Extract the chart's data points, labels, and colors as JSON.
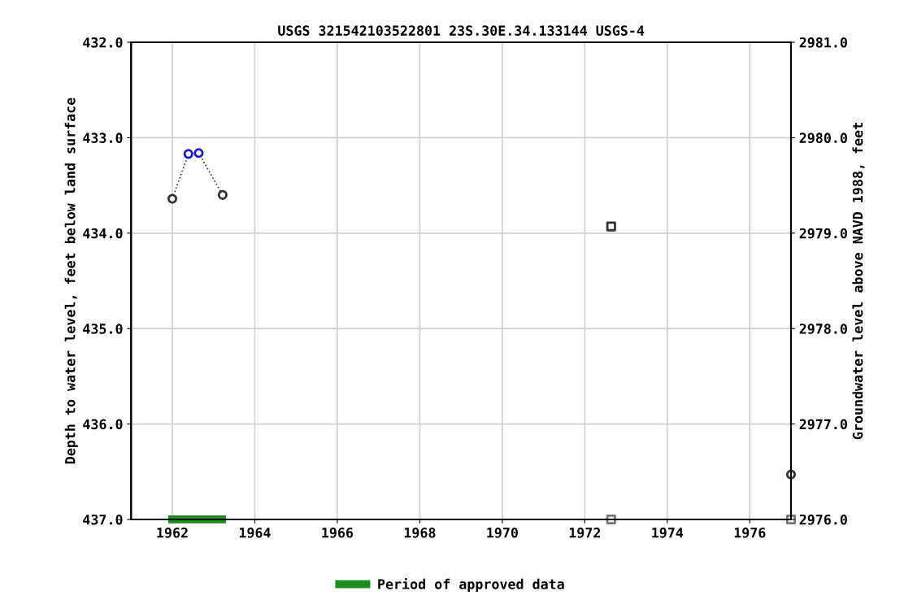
{
  "chart_data": {
    "type": "scatter",
    "title": "USGS 321542103522801 23S.30E.34.133144 USGS-4",
    "ylabel": "Depth to water level, feet below land surface",
    "y2label": "Groundwater level above NAVD 1988, feet",
    "xlim": [
      1961.0,
      1977.0
    ],
    "xticks": [
      1962,
      1964,
      1966,
      1968,
      1970,
      1972,
      1974,
      1976
    ],
    "ylim": [
      437.0,
      432.0
    ],
    "yticks": [
      {
        "value": 432,
        "label": "432.0"
      },
      {
        "value": 433,
        "label": "433.0"
      },
      {
        "value": 434,
        "label": "434.0"
      },
      {
        "value": 435,
        "label": "435.0"
      },
      {
        "value": 436,
        "label": "436.0"
      },
      {
        "value": 437,
        "label": "437.0"
      }
    ],
    "y2lim": [
      2976.0,
      2981.0
    ],
    "y2ticks": [
      {
        "value": 2976,
        "label": "2976.0"
      },
      {
        "value": 2977,
        "label": "2977.0"
      },
      {
        "value": 2978,
        "label": "2978.0"
      },
      {
        "value": 2979,
        "label": "2979.0"
      },
      {
        "value": 2980,
        "label": "2980.0"
      },
      {
        "value": 2981,
        "label": "2981.0"
      }
    ],
    "grid": true,
    "legend": "bottom",
    "series": [
      {
        "type": "line",
        "line_style": "dotted",
        "marker": "circle",
        "color": "#333333",
        "colors": [
          "#333333",
          "#1a1acc",
          "#1a1acc",
          "#333333"
        ],
        "x": [
          1962.0,
          1962.39,
          1962.64,
          1963.22
        ],
        "values": [
          433.64,
          433.17,
          433.16,
          433.6
        ]
      },
      {
        "marker": "square",
        "color": "#333333",
        "x": [
          1972.64
        ],
        "values": [
          433.93
        ]
      },
      {
        "marker": "circle",
        "color": "#333333",
        "x": [
          1977.0
        ],
        "values": [
          436.53
        ]
      },
      {
        "marker": "square",
        "color": "#777777",
        "x": [
          1972.64,
          1977.0
        ],
        "values": [
          437.0,
          437.0
        ]
      },
      {
        "type": "line",
        "name": "Period of approved data",
        "line_style": "solid",
        "marker": "none",
        "color": "#1e8c1e",
        "x": [
          1961.9,
          1963.3
        ],
        "values": [
          437.0,
          437.0
        ]
      }
    ]
  }
}
